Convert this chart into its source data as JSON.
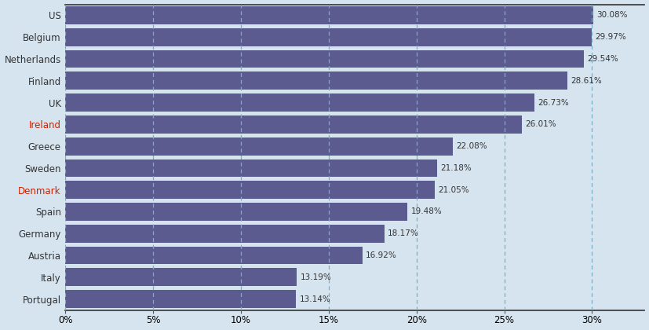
{
  "countries": [
    "Portugal",
    "Italy",
    "Austria",
    "Germany",
    "Spain",
    "Denmark",
    "Sweden",
    "Greece",
    "Ireland",
    "UK",
    "Finland",
    "Netherlands",
    "Belgium",
    "US"
  ],
  "values": [
    13.14,
    13.19,
    16.92,
    18.17,
    19.48,
    21.05,
    21.18,
    22.08,
    26.01,
    26.73,
    28.61,
    29.54,
    29.97,
    30.08
  ],
  "bar_color": "#5b5b8f",
  "bg_color": "#d6e4f0",
  "grid_color": "#7aaec8",
  "label_colors": {
    "US": "#333333",
    "Belgium": "#333333",
    "Netherlands": "#333333",
    "Finland": "#333333",
    "UK": "#333333",
    "Ireland": "#cc2200",
    "Greece": "#333333",
    "Sweden": "#333333",
    "Denmark": "#cc2200",
    "Spain": "#333333",
    "Germany": "#333333",
    "Austria": "#333333",
    "Italy": "#333333",
    "Portugal": "#333333"
  },
  "xlim_max": 33,
  "xticks": [
    0,
    5,
    10,
    15,
    20,
    25,
    30
  ],
  "xticklabels": [
    "0%",
    "5%",
    "10%",
    "15%",
    "20%",
    "25%",
    "30%"
  ],
  "value_label_fontsize": 7.5,
  "ylabel_fontsize": 8.5,
  "bar_height": 0.82
}
